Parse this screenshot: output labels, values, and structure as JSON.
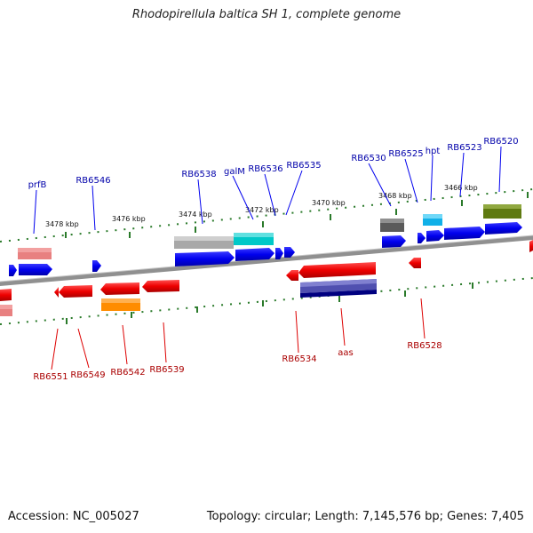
{
  "title": "Rhodopirellula baltica SH 1, complete genome",
  "footer": {
    "accession": "Accession: NC_005027",
    "summary": "Topology: circular; Length: 7,145,576 bp; Genes: 7,405"
  },
  "colors": {
    "top_label": "#0000aa",
    "bottom_label": "#aa0000",
    "axis": "#888888",
    "ruler": "#2a7a2a"
  },
  "ticks": [
    "3478 kbp",
    "3476 kbp",
    "3474 kbp",
    "3472 kbp",
    "3470 kbp",
    "3468 kbp",
    "3466 kbp"
  ],
  "top_labels": [
    "prfB",
    "RB6546",
    "RB6538",
    "galM",
    "RB6536",
    "RB6535",
    "RB6530",
    "RB6525",
    "hpt",
    "RB6523",
    "RB6520"
  ],
  "bottom_labels": [
    "RB6551",
    "RB6549",
    "RB6542",
    "RB6539",
    "RB6534",
    "aas",
    "RB6528"
  ]
}
